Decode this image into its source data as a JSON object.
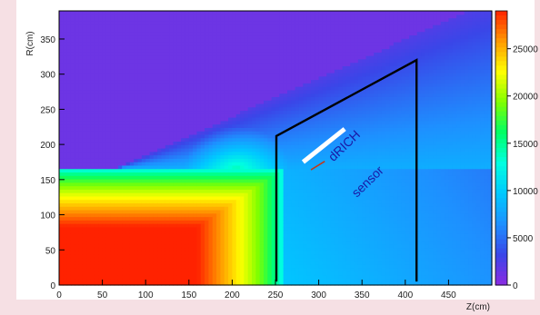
{
  "chart_data": {
    "type": "heatmap",
    "title": "",
    "xlabel": "Z(cm)",
    "ylabel": "R(cm)",
    "xlim": [
      0,
      500
    ],
    "ylim": [
      0,
      390
    ],
    "x_ticks": [
      0,
      50,
      100,
      150,
      200,
      250,
      300,
      350,
      400,
      450
    ],
    "y_ticks": [
      0,
      50,
      100,
      150,
      200,
      250,
      300,
      350
    ],
    "colorbar": {
      "min": 0,
      "max": 29000,
      "ticks": [
        0,
        5000,
        10000,
        15000,
        20000,
        25000
      ],
      "colors": [
        "#8a2be2",
        "#3a46e8",
        "#1e90ff",
        "#00c8ff",
        "#00ffe0",
        "#00ff66",
        "#80ff00",
        "#ffff00",
        "#ff9900",
        "#ff2200"
      ]
    },
    "detector_outline": {
      "points_zr": [
        [
          251,
          5
        ],
        [
          251,
          212
        ],
        [
          413,
          320
        ],
        [
          413,
          5
        ]
      ],
      "color": "#000000"
    },
    "sensor_bar": {
      "from_zr": [
        282,
        175
      ],
      "to_zr": [
        330,
        222
      ],
      "color": "#ffffff"
    },
    "annotations": [
      {
        "text": "dRICH",
        "z": 317,
        "r": 175,
        "angle": -44,
        "color": "#1a1aa6"
      },
      {
        "text": "sensor",
        "z": 344,
        "r": 124,
        "angle": -44,
        "color": "#1a1aa6"
      }
    ]
  }
}
